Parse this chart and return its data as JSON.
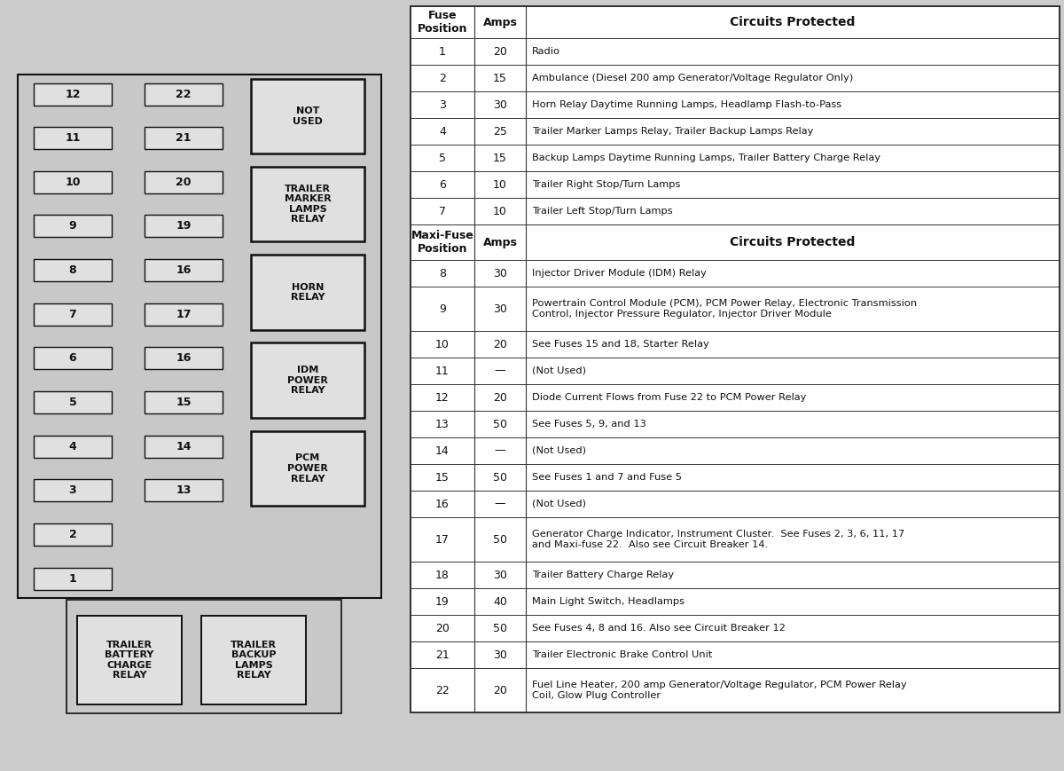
{
  "bg_color": "#cccccc",
  "panel_bg": "#c8c8c8",
  "box_bg": "#e0e0e0",
  "box_edge": "#111111",
  "fuse_rows": [
    [
      "1",
      "20",
      "Radio"
    ],
    [
      "2",
      "15",
      "Ambulance (Diesel 200 amp Generator/Voltage Regulator Only)"
    ],
    [
      "3",
      "30",
      "Horn Relay Daytime Running Lamps, Headlamp Flash-to-Pass"
    ],
    [
      "4",
      "25",
      "Trailer Marker Lamps Relay, Trailer Backup Lamps Relay"
    ],
    [
      "5",
      "15",
      "Backup Lamps Daytime Running Lamps, Trailer Battery Charge Relay"
    ],
    [
      "6",
      "10",
      "Trailer Right Stop/Turn Lamps"
    ],
    [
      "7",
      "10",
      "Trailer Left Stop/Turn Lamps"
    ]
  ],
  "maxi_rows": [
    [
      "8",
      "30",
      "Injector Driver Module (IDM) Relay",
      1
    ],
    [
      "9",
      "30",
      "Powertrain Control Module (PCM), PCM Power Relay, Electronic Transmission\nControl, Injector Pressure Regulator, Injector Driver Module",
      2
    ],
    [
      "10",
      "20",
      "See Fuses 15 and 18, Starter Relay",
      1
    ],
    [
      "11",
      "—",
      "(Not Used)",
      1
    ],
    [
      "12",
      "20",
      "Diode Current Flows from Fuse 22 to PCM Power Relay",
      1
    ],
    [
      "13",
      "50",
      "See Fuses 5, 9, and 13",
      1
    ],
    [
      "14",
      "—",
      "(Not Used)",
      1
    ],
    [
      "15",
      "50",
      "See Fuses 1 and 7 and Fuse 5",
      1
    ],
    [
      "16",
      "—",
      "(Not Used)",
      1
    ],
    [
      "17",
      "50",
      "Generator Charge Indicator, Instrument Cluster.  See Fuses 2, 3, 6, 11, 17\nand Maxi-fuse 22.  Also see Circuit Breaker 14.",
      2
    ],
    [
      "18",
      "30",
      "Trailer Battery Charge Relay",
      1
    ],
    [
      "19",
      "40",
      "Main Light Switch, Headlamps",
      1
    ],
    [
      "20",
      "50",
      "See Fuses 4, 8 and 16. Also see Circuit Breaker 12",
      1
    ],
    [
      "21",
      "30",
      "Trailer Electronic Brake Control Unit",
      1
    ],
    [
      "22",
      "20",
      "Fuel Line Heater, 200 amp Generator/Voltage Regulator, PCM Power Relay\nCoil, Glow Plug Controller",
      2
    ]
  ],
  "left_fuses_top_to_bot": [
    12,
    11,
    10,
    9,
    8,
    7,
    6,
    5,
    4,
    3,
    2,
    1
  ],
  "right_fuses_top_to_bot": [
    22,
    21,
    20,
    19,
    16,
    17,
    16,
    15,
    14,
    13
  ],
  "relay_labels": [
    "NOT\nUSED",
    "TRAILER\nMARKER\nLAMPS\nRELAY",
    "HORN\nRELAY",
    "IDM\nPOWER\nRELAY",
    "PCM\nPOWER\nRELAY"
  ],
  "bottom_relay_labels": [
    "TRAILER\nBATTERY\nCHARGE\nRELAY",
    "TRAILER\nBACKUP\nLAMPS\nRELAY"
  ]
}
